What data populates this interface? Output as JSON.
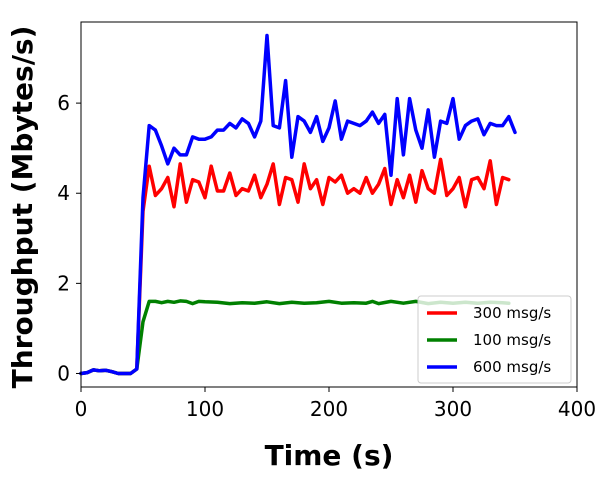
{
  "chart_data": {
    "type": "line",
    "title": "",
    "xlabel": "Time (s)",
    "ylabel": "Throughput (Mbytes/s)",
    "xlim": [
      0,
      400
    ],
    "ylim": [
      -0.3,
      7.8
    ],
    "xticks": [
      0,
      100,
      200,
      300,
      400
    ],
    "yticks": [
      0,
      2,
      4,
      6
    ],
    "grid": false,
    "legend_position": "lower-right",
    "series": [
      {
        "name": "300 msg/s",
        "color": "#ff0000",
        "x": [
          0,
          5,
          10,
          15,
          20,
          25,
          30,
          35,
          40,
          45,
          50,
          55,
          60,
          65,
          70,
          75,
          80,
          85,
          90,
          95,
          100,
          105,
          110,
          115,
          120,
          125,
          130,
          135,
          140,
          145,
          150,
          155,
          160,
          165,
          170,
          175,
          180,
          185,
          190,
          195,
          200,
          205,
          210,
          215,
          220,
          225,
          230,
          235,
          240,
          245,
          250,
          255,
          260,
          265,
          270,
          275,
          280,
          285,
          290,
          295,
          300,
          305,
          310,
          315,
          320,
          325,
          330,
          335,
          340,
          345
        ],
        "y": [
          0.0,
          0.02,
          0.08,
          0.06,
          0.07,
          0.04,
          0.0,
          0.0,
          0.0,
          0.1,
          3.6,
          4.6,
          3.95,
          4.1,
          4.35,
          3.7,
          4.65,
          3.8,
          4.3,
          4.25,
          3.9,
          4.6,
          4.05,
          4.05,
          4.45,
          3.95,
          4.1,
          4.05,
          4.4,
          3.9,
          4.2,
          4.65,
          3.75,
          4.35,
          4.3,
          3.8,
          4.65,
          4.1,
          4.3,
          3.75,
          4.35,
          4.25,
          4.4,
          4.0,
          4.1,
          4.0,
          4.35,
          4.0,
          4.2,
          4.55,
          3.75,
          4.3,
          3.9,
          4.4,
          3.8,
          4.5,
          4.1,
          4.0,
          4.75,
          3.95,
          4.1,
          4.35,
          3.7,
          4.3,
          4.35,
          4.1,
          4.72,
          3.75,
          4.35,
          4.3
        ]
      },
      {
        "name": "100 msg/s",
        "color": "#008000",
        "x": [
          0,
          5,
          10,
          15,
          20,
          25,
          30,
          35,
          40,
          45,
          50,
          55,
          60,
          65,
          70,
          75,
          80,
          85,
          90,
          95,
          100,
          110,
          120,
          130,
          140,
          150,
          160,
          170,
          180,
          190,
          200,
          210,
          220,
          230,
          235,
          240,
          250,
          260,
          270,
          280,
          290,
          300,
          310,
          320,
          330,
          340,
          345
        ],
        "y": [
          0.0,
          0.02,
          0.08,
          0.06,
          0.07,
          0.04,
          0.0,
          0.0,
          0.0,
          0.1,
          1.15,
          1.6,
          1.6,
          1.57,
          1.6,
          1.58,
          1.61,
          1.6,
          1.55,
          1.6,
          1.59,
          1.58,
          1.55,
          1.57,
          1.56,
          1.59,
          1.55,
          1.58,
          1.56,
          1.57,
          1.6,
          1.56,
          1.57,
          1.56,
          1.6,
          1.55,
          1.6,
          1.56,
          1.6,
          1.55,
          1.58,
          1.56,
          1.58,
          1.56,
          1.58,
          1.57,
          1.56
        ]
      },
      {
        "name": "600 msg/s",
        "color": "#0000ff",
        "x": [
          0,
          5,
          10,
          15,
          20,
          25,
          30,
          35,
          40,
          45,
          50,
          55,
          60,
          65,
          70,
          75,
          80,
          85,
          90,
          95,
          100,
          105,
          110,
          115,
          120,
          125,
          130,
          135,
          140,
          145,
          150,
          155,
          160,
          165,
          170,
          175,
          180,
          185,
          190,
          195,
          200,
          205,
          210,
          215,
          220,
          225,
          230,
          235,
          240,
          245,
          250,
          255,
          260,
          265,
          270,
          275,
          280,
          285,
          290,
          295,
          300,
          305,
          310,
          315,
          320,
          325,
          330,
          335,
          340,
          345,
          350
        ],
        "y": [
          0.0,
          0.02,
          0.08,
          0.06,
          0.07,
          0.04,
          0.0,
          0.0,
          0.0,
          0.1,
          3.9,
          5.5,
          5.4,
          5.05,
          4.65,
          5.0,
          4.85,
          4.85,
          5.25,
          5.2,
          5.2,
          5.25,
          5.4,
          5.4,
          5.55,
          5.45,
          5.65,
          5.55,
          5.25,
          5.6,
          7.5,
          5.5,
          5.45,
          6.5,
          4.8,
          5.7,
          5.6,
          5.35,
          5.7,
          5.15,
          5.45,
          6.05,
          5.2,
          5.6,
          5.55,
          5.5,
          5.6,
          5.8,
          5.55,
          5.75,
          4.4,
          6.1,
          4.85,
          6.1,
          5.4,
          5.0,
          5.85,
          4.8,
          5.6,
          5.55,
          6.1,
          5.2,
          5.5,
          5.6,
          5.65,
          5.3,
          5.55,
          5.5,
          5.5,
          5.7,
          5.35
        ]
      }
    ]
  }
}
